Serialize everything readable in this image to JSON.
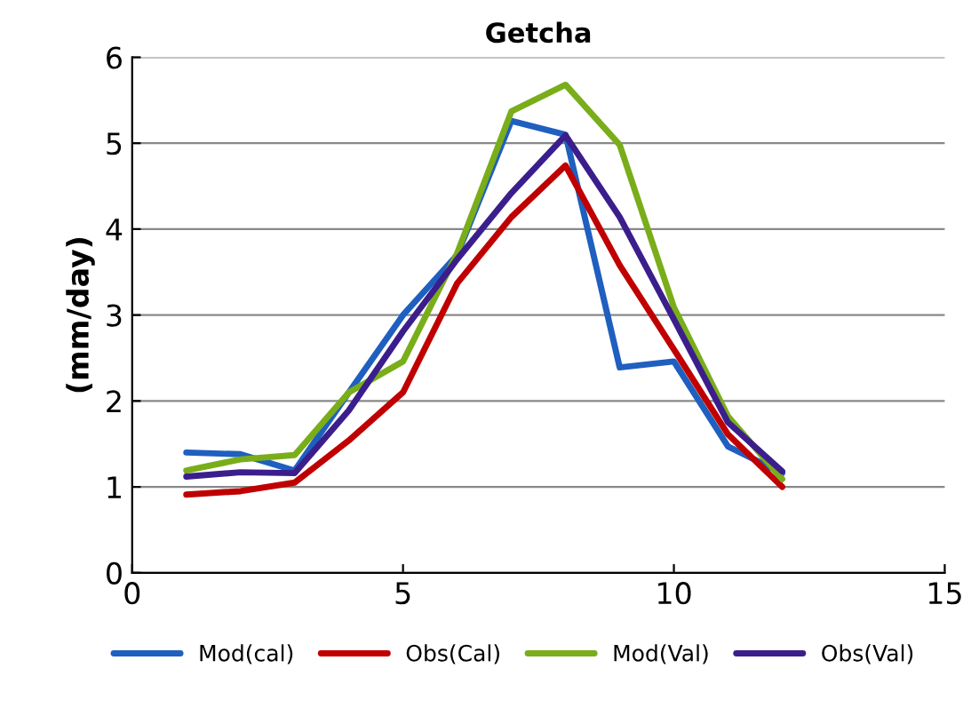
{
  "chart_data": {
    "type": "line",
    "title": "Getcha",
    "ylabel": "(mm/day)",
    "x": [
      1,
      2,
      3,
      4,
      5,
      6,
      7,
      8,
      9,
      10,
      11,
      12
    ],
    "series": [
      {
        "name": "Mod(cal)",
        "color": "#1f5fbf",
        "values": [
          1.4,
          1.38,
          1.19,
          2.1,
          3.0,
          3.7,
          5.26,
          5.1,
          2.39,
          2.46,
          1.47,
          1.16
        ]
      },
      {
        "name": "Obs(Cal)",
        "color": "#c00000",
        "values": [
          0.91,
          0.95,
          1.05,
          1.54,
          2.1,
          3.37,
          4.14,
          4.74,
          3.58,
          2.6,
          1.61,
          1.0
        ]
      },
      {
        "name": "Mod(Val)",
        "color": "#7aad1a",
        "values": [
          1.19,
          1.32,
          1.37,
          2.1,
          2.46,
          3.72,
          5.37,
          5.68,
          4.98,
          3.09,
          1.82,
          1.09
        ]
      },
      {
        "name": "Obs(Val)",
        "color": "#3b1e8c",
        "values": [
          1.12,
          1.17,
          1.16,
          1.89,
          2.81,
          3.65,
          4.42,
          5.09,
          4.14,
          2.95,
          1.75,
          1.18
        ]
      }
    ],
    "xlim": [
      0,
      15
    ],
    "xticks": [
      0,
      5,
      10,
      15
    ],
    "ylim": [
      0,
      6
    ],
    "yticks": [
      0,
      1,
      2,
      3,
      4,
      5,
      6
    ],
    "grid": "y",
    "legend": "bottom",
    "marker": "none",
    "line_style": "solid"
  }
}
